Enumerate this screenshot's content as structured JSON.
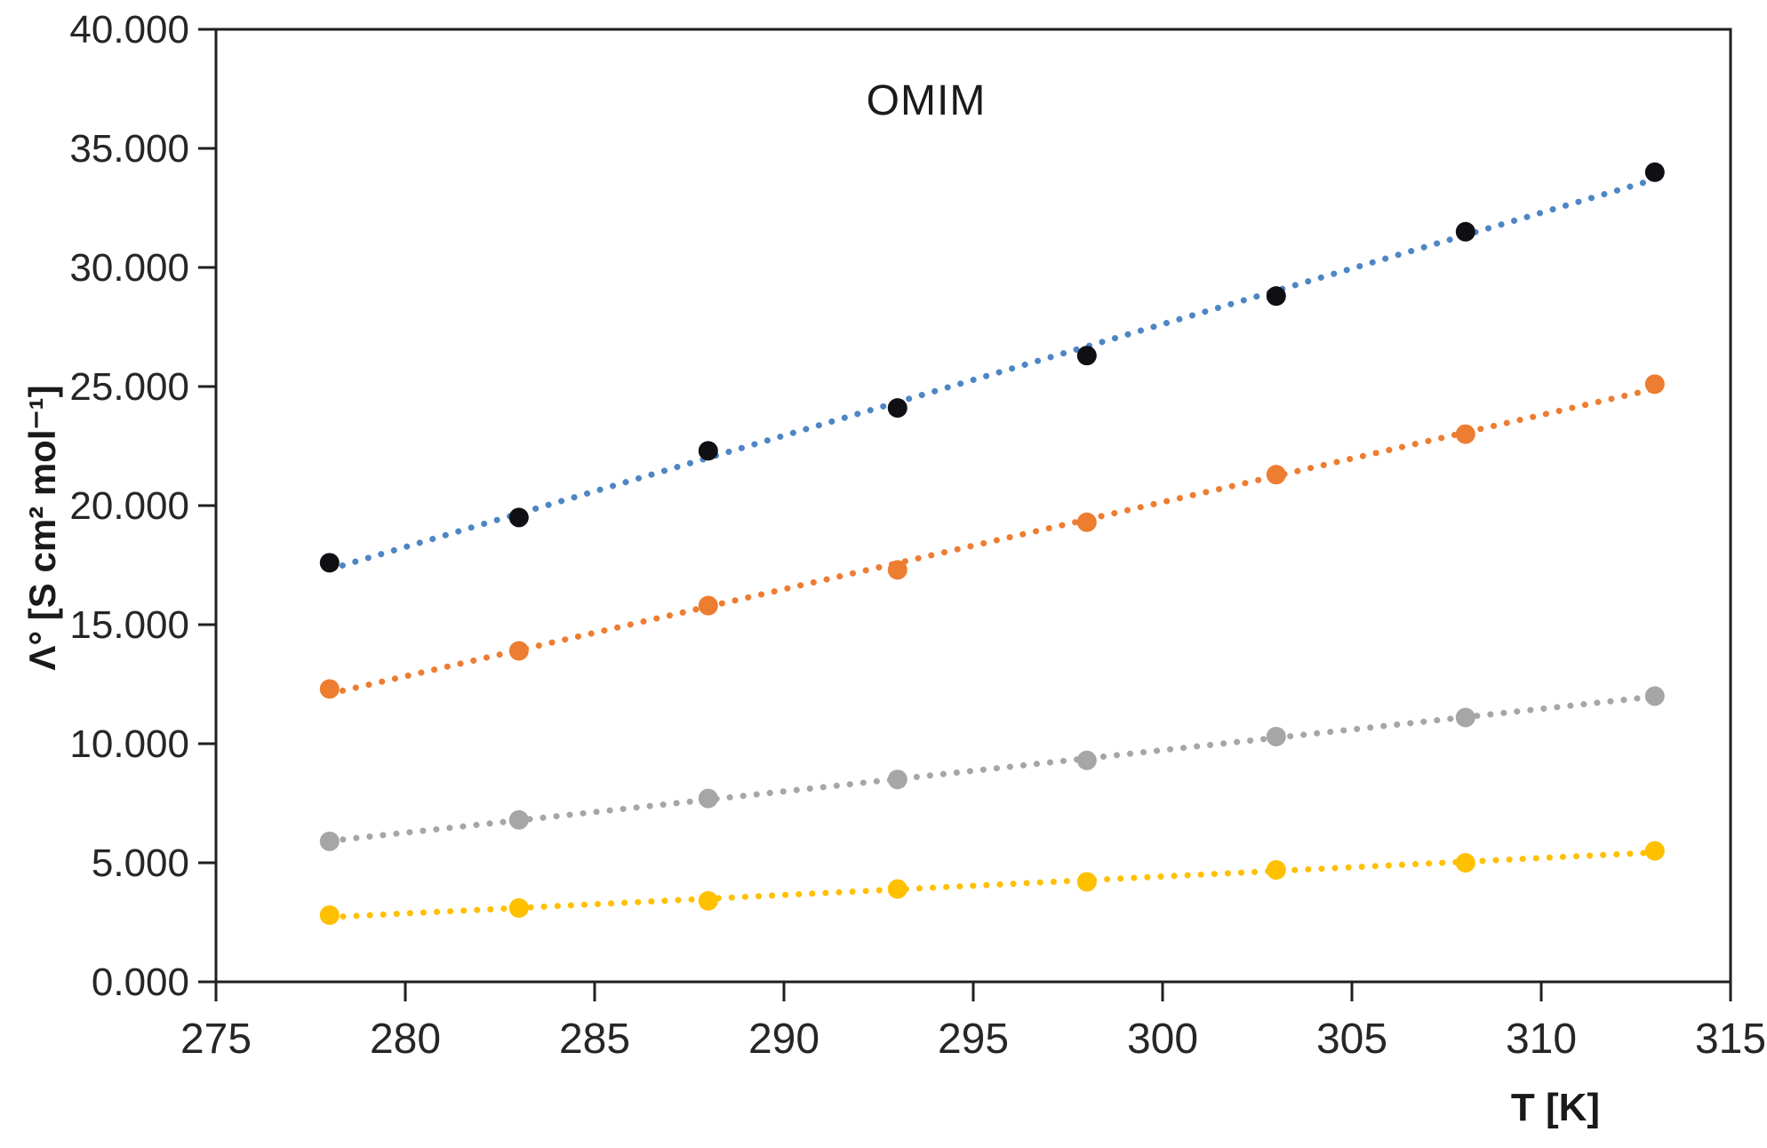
{
  "chart_data": {
    "type": "scatter",
    "title": "OMIM",
    "xlabel": "T [K]",
    "ylabel": "Λ° [S cm² mol⁻¹]",
    "x": [
      278,
      283,
      288,
      293,
      298,
      303,
      308,
      313
    ],
    "series": [
      {
        "name": "black-series",
        "marker_color": "#101014",
        "trendline_color": "#4E86C5",
        "values": [
          17600,
          19500,
          22300,
          24100,
          26300,
          28800,
          31500,
          34000
        ]
      },
      {
        "name": "orange-series",
        "marker_color": "#ED7D31",
        "trendline_color": "#ED7D31",
        "values": [
          12300,
          13900,
          15800,
          17300,
          19300,
          21300,
          23000,
          25100
        ]
      },
      {
        "name": "gray-series",
        "marker_color": "#A6A6A6",
        "trendline_color": "#A6A6A6",
        "values": [
          5900,
          6800,
          7700,
          8500,
          9300,
          10300,
          11100,
          12000
        ]
      },
      {
        "name": "yellow-series",
        "marker_color": "#FFC000",
        "trendline_color": "#FFC000",
        "values": [
          2800,
          3100,
          3400,
          3900,
          4200,
          4700,
          5000,
          5500
        ]
      }
    ],
    "xlim": [
      275,
      315
    ],
    "ylim": [
      0,
      40000
    ],
    "x_ticks": {
      "values": [
        275,
        280,
        285,
        290,
        295,
        300,
        305,
        310,
        315
      ],
      "labels": [
        "275",
        "280",
        "285",
        "290",
        "295",
        "300",
        "305",
        "310",
        "315"
      ]
    },
    "y_ticks": {
      "values": [
        0,
        5000,
        10000,
        15000,
        20000,
        25000,
        30000,
        35000,
        40000
      ],
      "labels": [
        "0.000",
        "5.000",
        "10.000",
        "15.000",
        "20.000",
        "25.000",
        "30.000",
        "35.000",
        "40.000"
      ]
    },
    "grid": false,
    "legend": "none",
    "trendline": "linear-dotted",
    "axis_color": "#1f1f1f",
    "tick_label_color": "#262626"
  }
}
